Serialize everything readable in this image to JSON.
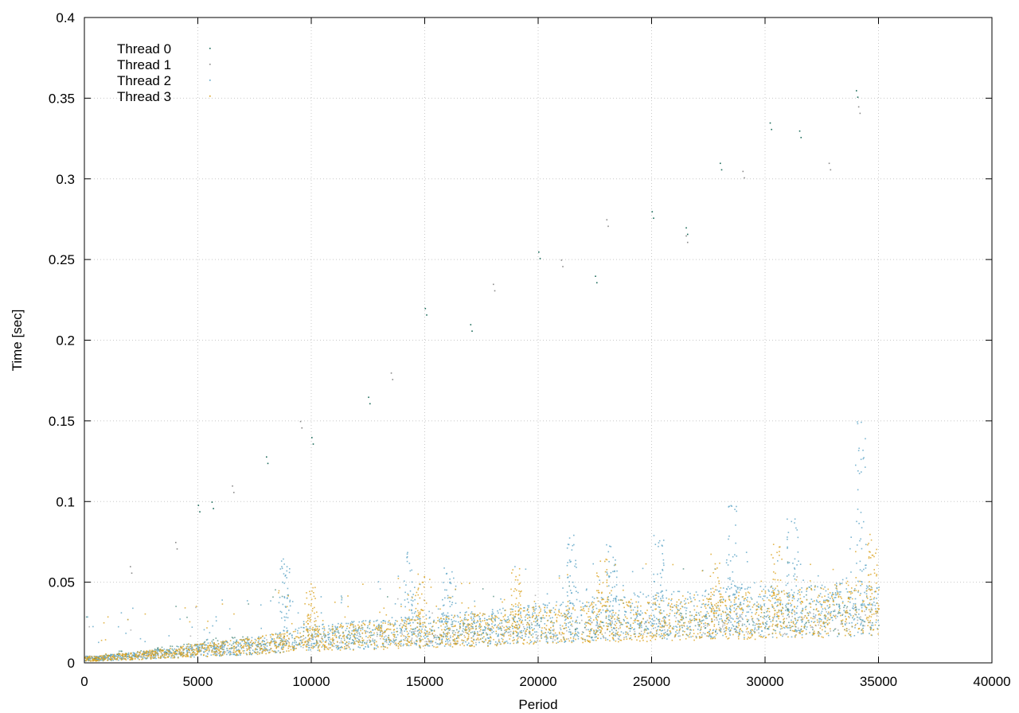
{
  "chart_data": {
    "type": "scatter",
    "title": "",
    "xlabel": "Period",
    "ylabel": "Time [sec]",
    "xlim": [
      0,
      40000
    ],
    "ylim": [
      0,
      0.4
    ],
    "x_ticks": [
      0,
      5000,
      10000,
      15000,
      20000,
      25000,
      30000,
      35000,
      40000
    ],
    "x_tick_labels": [
      "0",
      "5000",
      "10000",
      "15000",
      "20000",
      "25000",
      "30000",
      "35000",
      "40000"
    ],
    "y_ticks": [
      0,
      0.05,
      0.1,
      0.15,
      0.2,
      0.25,
      0.3,
      0.35,
      0.4
    ],
    "y_tick_labels": [
      "0",
      "0.05",
      "0.1",
      "0.15",
      "0.2",
      "0.25",
      "0.3",
      "0.35",
      "0.4"
    ],
    "grid": true,
    "legend_position": "top-left",
    "series": [
      {
        "name": "Thread 0",
        "color": "#1a6b5a",
        "x": [
          500,
          1500,
          3500,
          5000,
          5500,
          7500,
          8500,
          10000,
          12500,
          15000,
          17500,
          20000,
          22500,
          25000,
          27500,
          30000,
          32500,
          35000
        ],
        "y": [
          0.003,
          0.006,
          0.008,
          0.01,
          0.012,
          0.013,
          0.014,
          0.016,
          0.018,
          0.02,
          0.021,
          0.022,
          0.023,
          0.024,
          0.025,
          0.027,
          0.028,
          0.03
        ],
        "outliers_x": [
          5000,
          5600,
          8000,
          10000,
          12500,
          15000,
          17000,
          20000,
          22500,
          25000,
          26500,
          28000,
          30200,
          31500,
          34000
        ],
        "outliers_y": [
          0.098,
          0.1,
          0.128,
          0.14,
          0.165,
          0.22,
          0.21,
          0.255,
          0.24,
          0.28,
          0.27,
          0.31,
          0.335,
          0.33,
          0.355
        ]
      },
      {
        "name": "Thread 1",
        "color": "#8a8a8a",
        "x": [
          1000,
          3000,
          6000,
          9000,
          12000,
          16000,
          20000,
          24000,
          28000,
          32000,
          35000
        ],
        "y": [
          0.004,
          0.006,
          0.009,
          0.012,
          0.015,
          0.017,
          0.02,
          0.022,
          0.024,
          0.026,
          0.028
        ],
        "outliers_x": [
          2000,
          4000,
          6500,
          9500,
          13500,
          18000,
          21000,
          23000,
          26500,
          29000,
          32800,
          34100
        ],
        "outliers_y": [
          0.06,
          0.075,
          0.11,
          0.15,
          0.18,
          0.235,
          0.25,
          0.275,
          0.265,
          0.305,
          0.31,
          0.345
        ]
      },
      {
        "name": "Thread 2",
        "color": "#5ba4c6",
        "x": [
          500,
          2500,
          5000,
          7500,
          10000,
          12500,
          15000,
          17500,
          20000,
          22500,
          25000,
          27500,
          30000,
          32500,
          35000
        ],
        "y": [
          0.003,
          0.005,
          0.008,
          0.011,
          0.016,
          0.018,
          0.02,
          0.022,
          0.025,
          0.028,
          0.03,
          0.031,
          0.032,
          0.033,
          0.034
        ],
        "spikes_x": [
          8800,
          14300,
          16000,
          21500,
          23200,
          25300,
          28500,
          31200,
          34200
        ],
        "spikes_y": [
          0.065,
          0.07,
          0.06,
          0.08,
          0.075,
          0.085,
          0.1,
          0.09,
          0.15
        ]
      },
      {
        "name": "Thread 3",
        "color": "#dba21f",
        "x": [
          500,
          2500,
          5000,
          7500,
          10000,
          12500,
          15000,
          17500,
          20000,
          22500,
          25000,
          27500,
          30000,
          32500,
          35000
        ],
        "y": [
          0.003,
          0.005,
          0.008,
          0.011,
          0.015,
          0.017,
          0.019,
          0.021,
          0.024,
          0.026,
          0.027,
          0.029,
          0.03,
          0.032,
          0.035
        ],
        "spikes_x": [
          10000,
          14800,
          19000,
          22800,
          27800,
          30500,
          34700
        ],
        "spikes_y": [
          0.05,
          0.055,
          0.06,
          0.065,
          0.07,
          0.075,
          0.08
        ]
      }
    ]
  }
}
